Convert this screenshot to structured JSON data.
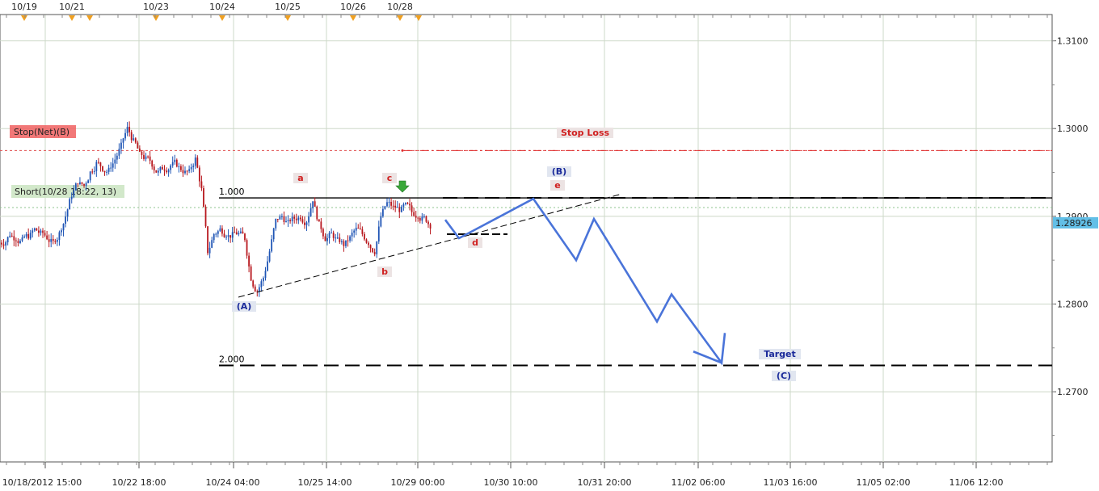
{
  "chart_data": {
    "type": "candlestick",
    "instrument_price_scale": [
      1.27,
      1.28,
      1.29,
      1.3,
      1.31
    ],
    "y_tick_labels": [
      "1.3100",
      "1.3000",
      "1.2900",
      "1.2800",
      "1.2700"
    ],
    "current_price_label": "1.28926",
    "ylim": [
      1.262,
      1.313
    ],
    "top_date_labels": [
      "10/19",
      "10/21",
      "10/23",
      "10/24",
      "10/25",
      "10/26",
      "10/28"
    ],
    "bottom_time_labels": [
      "10/18/2012 15:00",
      "10/22 18:00",
      "10/24 04:00",
      "10/25 14:00",
      "10/29 00:00",
      "10/30 10:00",
      "10/31 20:00",
      "11/02 06:00",
      "11/03 16:00",
      "11/05 02:00",
      "11/06 12:00"
    ],
    "price_path": [
      [
        1.287,
        1.288,
        1.2875,
        1.2872,
        1.2878,
        1.2885,
        1.288,
        1.2876,
        1.287,
        1.288,
        1.29,
        1.2925,
        1.294,
        1.2935,
        1.295,
        1.296,
        1.2955,
        1.2952,
        1.2965,
        1.298,
        1.3,
        1.2985,
        1.297,
        1.2965,
        1.296,
        1.295,
        1.2955,
        1.2958,
        1.296,
        1.2952,
        1.295,
        1.2965,
        1.293,
        1.286,
        1.288,
        1.2885,
        1.288,
        1.2878,
        1.288,
        1.2875,
        1.283,
        1.2815,
        1.283,
        1.286,
        1.2895,
        1.29,
        1.2892,
        1.2898,
        1.29,
        1.2895,
        1.292,
        1.289,
        1.2875,
        1.288,
        1.2872,
        1.2868,
        1.2875,
        1.2885,
        1.288,
        1.287,
        1.286,
        1.29,
        1.2915,
        1.291,
        1.2908,
        1.2912,
        1.2905,
        1.2902,
        1.2898,
        1.289
      ]
    ],
    "horizontal_levels": [
      {
        "name": "Stop Loss",
        "value": 1.2975,
        "color": "#e03030",
        "style": "dash-dot"
      },
      {
        "name": "1.000",
        "value": 1.2921,
        "color": "#000000",
        "style": "long-dash"
      },
      {
        "name": "Short entry",
        "value": 1.291,
        "color": "#8fc58f",
        "style": "dotted"
      },
      {
        "name": "2.000",
        "value": 1.273,
        "color": "#000000",
        "style": "long-dash"
      }
    ],
    "labels": {
      "stop_net": "Stop(Net)(B)",
      "short_order": "Short(10/28 18:22, 13)",
      "stop_loss": "Stop Loss",
      "target": "Target",
      "fib_1": "1.000",
      "fib_2": "2.000",
      "wave_A": "(A)",
      "wave_B": "(B)",
      "wave_C": "(C)",
      "wave_a": "a",
      "wave_b": "b",
      "wave_c": "c",
      "wave_d": "d",
      "wave_e": "e"
    },
    "projection_path_prices": [
      1.2896,
      1.2875,
      1.292,
      1.285,
      1.2897,
      1.278,
      1.2811,
      1.2733,
      1.2767
    ],
    "colors": {
      "bull": "#1f55b5",
      "bear": "#b8181e",
      "projection": "#4a74d9",
      "grid": "#cdd8c8",
      "price_badge": "#62bfe7"
    }
  }
}
